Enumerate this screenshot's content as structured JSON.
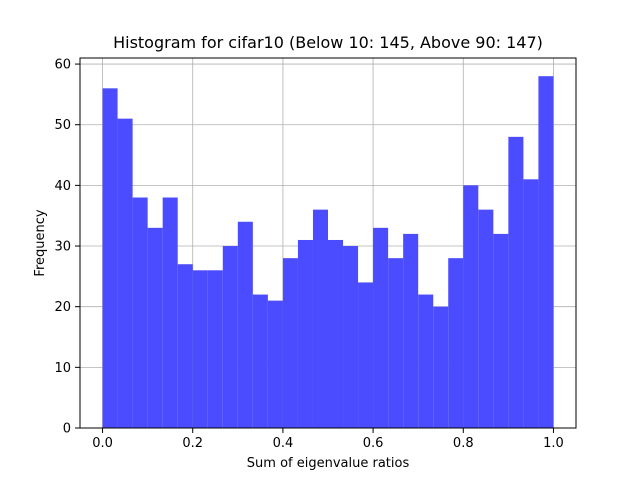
{
  "chart_data": {
    "type": "bar",
    "title": "Histogram for cifar10 (Below 10: 145, Above 90: 147)",
    "xlabel": "Sum of eigenvalue ratios",
    "ylabel": "Frequency",
    "xlim": [
      -0.05,
      1.05
    ],
    "ylim": [
      0,
      61
    ],
    "xticks": [
      0.0,
      0.2,
      0.4,
      0.6,
      0.8,
      1.0
    ],
    "xtick_labels": [
      "0.0",
      "0.2",
      "0.4",
      "0.6",
      "0.8",
      "1.0"
    ],
    "yticks": [
      0,
      10,
      20,
      30,
      40,
      50,
      60
    ],
    "ytick_labels": [
      "0",
      "10",
      "20",
      "30",
      "40",
      "50",
      "60"
    ],
    "grid": true,
    "bin_range": [
      0.0,
      1.0
    ],
    "bins": 30,
    "values": [
      56,
      51,
      38,
      33,
      38,
      27,
      26,
      26,
      30,
      34,
      22,
      21,
      28,
      31,
      36,
      31,
      30,
      24,
      33,
      28,
      32,
      22,
      20,
      28,
      40,
      36,
      32,
      48,
      41,
      58
    ],
    "color": "#4b4bff"
  }
}
